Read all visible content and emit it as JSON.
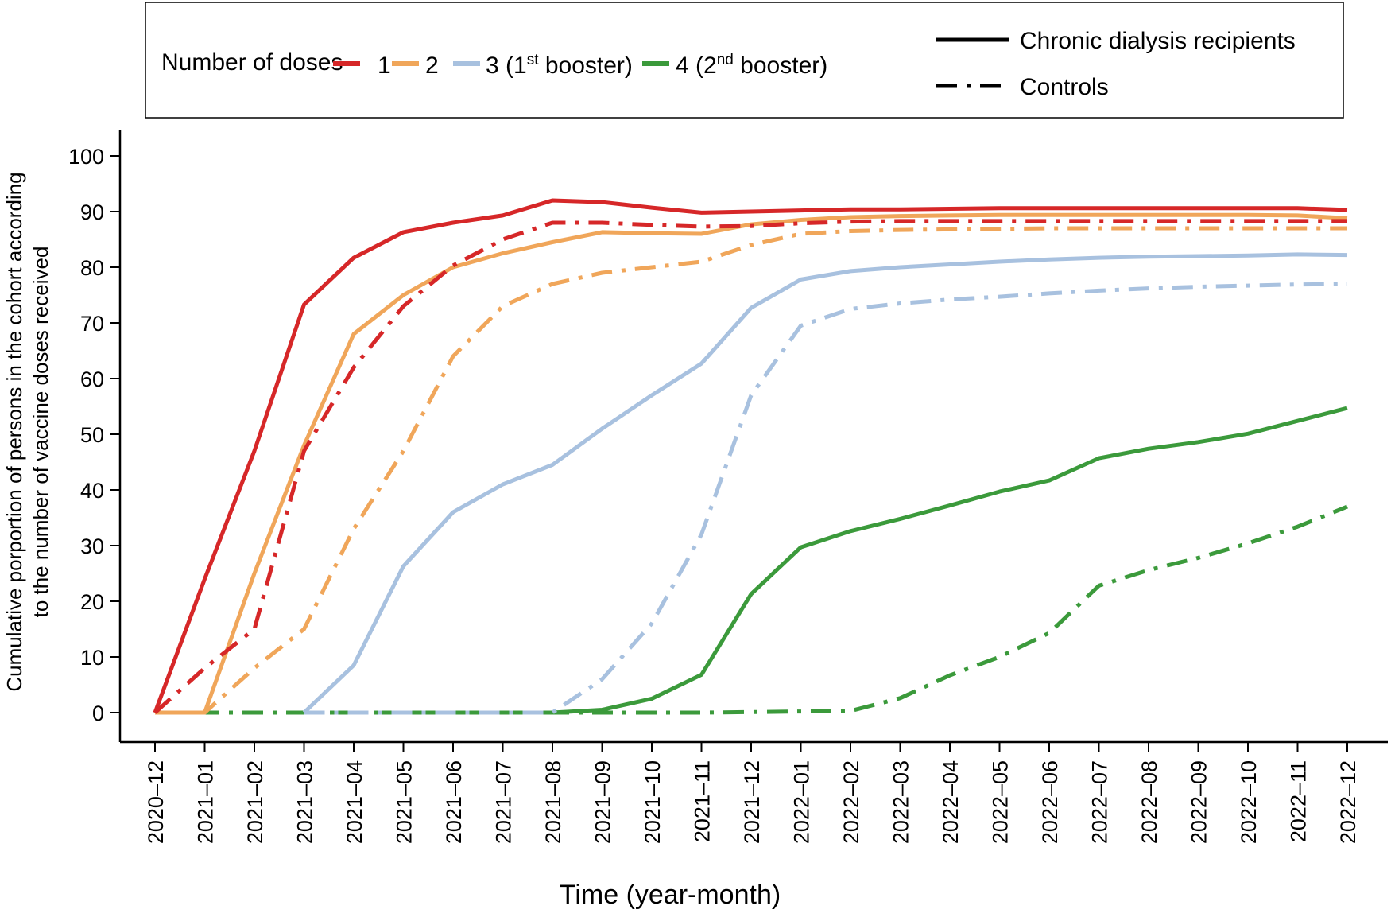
{
  "chart_data": {
    "type": "line",
    "title": "",
    "xlabel": "Time (year-month)",
    "ylabel_lines": [
      "Cumulative porportion of persons in the cohort according",
      "to the number of vaccine doses received"
    ],
    "ylim": [
      0,
      100
    ],
    "yticks": [
      0,
      10,
      20,
      30,
      40,
      50,
      60,
      70,
      80,
      90,
      100
    ],
    "categories": [
      "2020–12",
      "2021–01",
      "2021–02",
      "2021–03",
      "2021–04",
      "2021–05",
      "2021–06",
      "2021–07",
      "2021–08",
      "2021–09",
      "2021–10",
      "2021–11",
      "2021–12",
      "2022–01",
      "2022–02",
      "2022–03",
      "2022–04",
      "2022–05",
      "2022–06",
      "2022–07",
      "2022–08",
      "2022–09",
      "2022–10",
      "2022–11",
      "2022–12"
    ],
    "legend": {
      "title": "Number of doses",
      "doses": [
        {
          "label": "1",
          "color": "#d62728"
        },
        {
          "label": "2",
          "color": "#f0a65a"
        },
        {
          "label": "3 (1",
          "sup": "st",
          "suffix": " booster)",
          "color": "#a8c1df"
        },
        {
          "label": "4 (2",
          "sup": "nd",
          "suffix": " booster)",
          "color": "#3b9a3b"
        }
      ],
      "groups": [
        {
          "label": "Chronic dialysis recipients",
          "style": "solid"
        },
        {
          "label": "Controls",
          "style": "dashdot"
        }
      ]
    },
    "series": [
      {
        "name": "1 - Chronic dialysis recipients",
        "dose": "1",
        "group": "Chronic dialysis recipients",
        "color": "#d62728",
        "style": "solid",
        "values": [
          0,
          24,
          47,
          73.3,
          81.7,
          86.3,
          88,
          89.3,
          92,
          91.7,
          90.7,
          89.8,
          90,
          90.2,
          90.4,
          90.4,
          90.5,
          90.6,
          90.6,
          90.6,
          90.6,
          90.6,
          90.6,
          90.6,
          90.3
        ]
      },
      {
        "name": "1 - Controls",
        "dose": "1",
        "group": "Controls",
        "color": "#d62728",
        "style": "dashdot",
        "values": [
          0,
          8,
          15,
          47,
          62,
          73,
          80.3,
          85,
          88,
          88,
          87.6,
          87.3,
          87.4,
          87.9,
          88.2,
          88.3,
          88.3,
          88.3,
          88.3,
          88.3,
          88.3,
          88.3,
          88.3,
          88.3,
          88.3
        ]
      },
      {
        "name": "2 - Chronic dialysis recipients",
        "dose": "2",
        "group": "Chronic dialysis recipients",
        "color": "#f0a65a",
        "style": "solid",
        "values": [
          0,
          0,
          25,
          48,
          68,
          75,
          80,
          82.5,
          84.5,
          86.3,
          86.1,
          86,
          87.7,
          88.5,
          89,
          89.2,
          89.3,
          89.4,
          89.4,
          89.4,
          89.4,
          89.4,
          89.4,
          89.3,
          88.8
        ]
      },
      {
        "name": "2 - Controls",
        "dose": "2",
        "group": "Controls",
        "color": "#f0a65a",
        "style": "dashdot",
        "values": [
          0,
          0,
          8,
          15,
          33,
          47,
          64,
          73,
          77,
          79,
          80,
          81,
          84,
          86,
          86.5,
          86.7,
          86.8,
          86.9,
          87,
          87,
          87,
          87,
          87,
          87,
          87
        ]
      },
      {
        "name": "3 - Chronic dialysis recipients",
        "dose": "3",
        "group": "Chronic dialysis recipients",
        "color": "#a8c1df",
        "style": "solid",
        "values": [
          null,
          null,
          null,
          0,
          8.5,
          26.3,
          36,
          41,
          44.5,
          51,
          57,
          62.7,
          72.7,
          77.8,
          79.3,
          80,
          80.5,
          81,
          81.4,
          81.7,
          81.9,
          82,
          82.1,
          82.3,
          82.2
        ]
      },
      {
        "name": "3 - Controls",
        "dose": "3",
        "group": "Controls",
        "color": "#a8c1df",
        "style": "dashdot",
        "values": [
          null,
          null,
          null,
          0,
          0,
          0,
          0,
          0,
          0,
          6,
          16,
          32,
          57,
          69.5,
          72.5,
          73.5,
          74.2,
          74.7,
          75.3,
          75.8,
          76.2,
          76.5,
          76.7,
          76.9,
          77
        ]
      },
      {
        "name": "4 - Chronic dialysis recipients",
        "dose": "4",
        "group": "Chronic dialysis recipients",
        "color": "#3b9a3b",
        "style": "solid",
        "values": [
          null,
          null,
          null,
          null,
          null,
          0,
          0,
          0,
          0,
          0.5,
          2.5,
          6.8,
          21.3,
          29.7,
          32.6,
          34.8,
          37.2,
          39.7,
          41.7,
          45.7,
          47.4,
          48.6,
          50.1,
          52.4,
          54.7
        ]
      },
      {
        "name": "4 - Controls",
        "dose": "4",
        "group": "Controls",
        "color": "#3b9a3b",
        "style": "dashdot",
        "values": [
          0,
          0,
          0,
          0,
          0,
          0,
          0,
          0,
          0,
          0,
          0,
          0,
          0.1,
          0.2,
          0.3,
          2.6,
          6.7,
          10,
          14.3,
          22.8,
          25.6,
          27.8,
          30.4,
          33.4,
          37
        ]
      }
    ]
  }
}
